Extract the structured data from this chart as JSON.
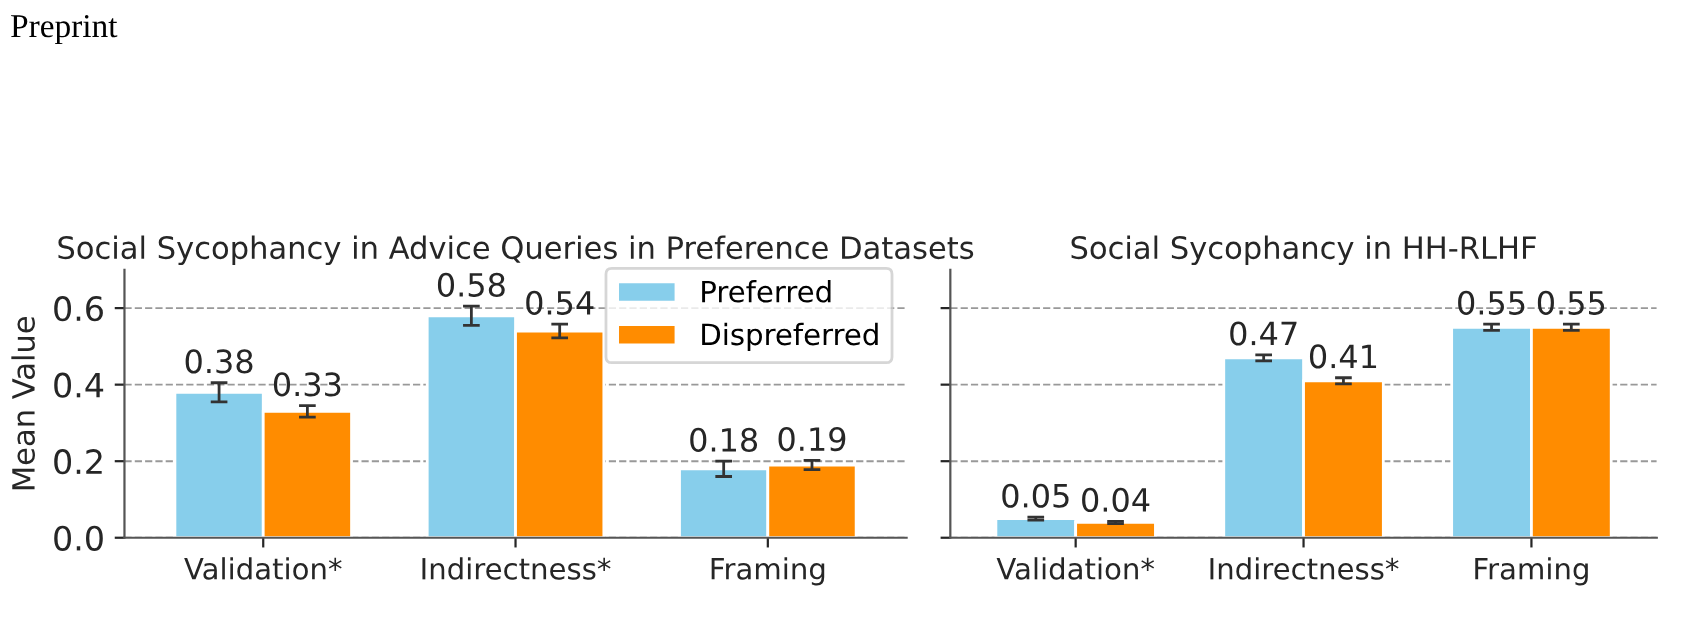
{
  "chart_data": [
    {
      "type": "bar",
      "title": "Social Sycophancy in Advice Queries in Preference Datasets",
      "ylabel": "Mean Value",
      "annotations": [
        "Preprint"
      ],
      "categories": [
        "Validation*",
        "Indirectness*",
        "Framing"
      ],
      "series": [
        {
          "name": "Preferred",
          "color": "#87ceeb",
          "values": [
            0.38,
            0.58,
            0.18
          ],
          "errors": [
            0.025,
            0.025,
            0.02
          ]
        },
        {
          "name": "Dispreferred",
          "color": "#ff8c00",
          "values": [
            0.33,
            0.54,
            0.19
          ],
          "errors": [
            0.015,
            0.018,
            0.012
          ]
        }
      ],
      "ylim": [
        0,
        0.7
      ],
      "yticks": [
        {
          "value": 0,
          "label": "0.0"
        },
        0.2,
        0.4,
        0.6
      ],
      "grid": "y",
      "legend": "top right",
      "data_labels": true
    },
    {
      "type": "bar",
      "title": "Social Sycophancy in HH-RLHF",
      "categories": [
        "Validation*",
        "Indirectness*",
        "Framing"
      ],
      "series": [
        {
          "color": "#87ceeb",
          "values": [
            0.05,
            0.47,
            0.55
          ],
          "errors": [
            0.004,
            0.008,
            0.008
          ]
        },
        {
          "color": "#ff8c00",
          "values": [
            0.04,
            0.41,
            0.55
          ],
          "errors": [
            0.003,
            0.008,
            0.008
          ]
        }
      ],
      "ylim": [
        0,
        0.7
      ],
      "yticks": [
        {
          "value": 0,
          "label": null
        },
        {
          "value": 0.2,
          "label": null
        },
        {
          "value": 0.4,
          "label": null
        },
        {
          "value": 0.6,
          "label": null
        }
      ],
      "grid": "y",
      "tick_labels": "x",
      "data_labels": true
    }
  ]
}
